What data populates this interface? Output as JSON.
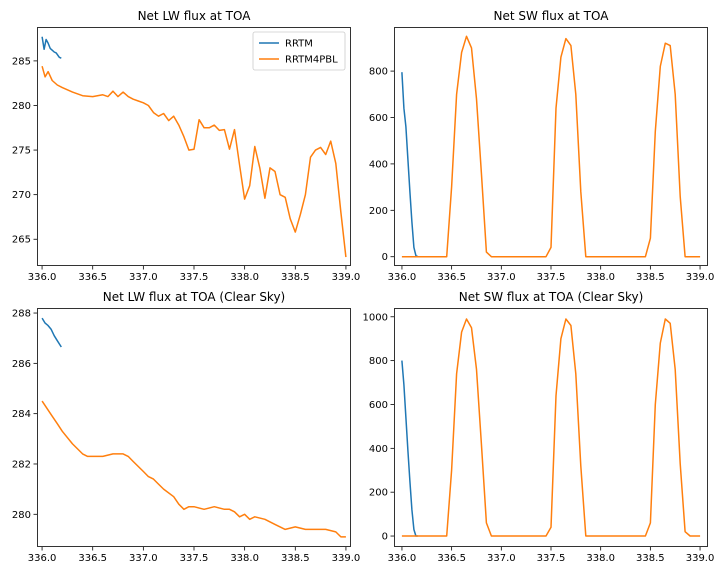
{
  "colors": {
    "rrtm": "#1f77b4",
    "rrtm4pbl": "#ff7f0e",
    "axis": "#000000",
    "background": "#ffffff"
  },
  "chart_data": [
    {
      "type": "line",
      "title": "Net LW flux at TOA",
      "xlabel": "",
      "ylabel": "",
      "xlim": [
        335.95,
        339.05
      ],
      "ylim": [
        262.0,
        288.8
      ],
      "xticks": [
        336.0,
        336.5,
        337.0,
        337.5,
        338.0,
        338.5,
        339.0
      ],
      "xtick_labels": [
        "336.0",
        "336.5",
        "337.0",
        "337.5",
        "338.0",
        "338.5",
        "339.0"
      ],
      "yticks": [
        265,
        270,
        275,
        280,
        285
      ],
      "ytick_labels": [
        "265",
        "270",
        "275",
        "280",
        "285"
      ],
      "legend": {
        "placement": "top-right",
        "entries": [
          "RRTM",
          "RRTM4PBL"
        ]
      },
      "grid": false,
      "series": [
        {
          "name": "RRTM",
          "color": "#1f77b4",
          "x": [
            336.0,
            336.02,
            336.04,
            336.06,
            336.08,
            336.1,
            336.12,
            336.14,
            336.17,
            336.19
          ],
          "y": [
            287.7,
            286.3,
            287.4,
            287.0,
            286.4,
            286.2,
            286.0,
            285.9,
            285.4,
            285.3
          ]
        },
        {
          "name": "RRTM4PBL",
          "color": "#ff7f0e",
          "x": [
            336.0,
            336.03,
            336.06,
            336.1,
            336.15,
            336.2,
            336.3,
            336.4,
            336.5,
            336.6,
            336.65,
            336.7,
            336.75,
            336.8,
            336.85,
            336.9,
            336.95,
            337.0,
            337.05,
            337.1,
            337.15,
            337.2,
            337.25,
            337.3,
            337.35,
            337.4,
            337.45,
            337.5,
            337.55,
            337.6,
            337.65,
            337.7,
            337.75,
            337.8,
            337.85,
            337.9,
            337.95,
            338.0,
            338.05,
            338.1,
            338.15,
            338.2,
            338.25,
            338.3,
            338.35,
            338.4,
            338.45,
            338.5,
            338.55,
            338.6,
            338.65,
            338.7,
            338.75,
            338.8,
            338.85,
            338.9,
            338.95,
            339.0
          ],
          "y": [
            284.4,
            283.2,
            283.8,
            282.8,
            282.3,
            282.0,
            281.5,
            281.1,
            281.0,
            281.2,
            281.0,
            281.6,
            281.0,
            281.5,
            281.0,
            280.7,
            280.5,
            280.3,
            280.0,
            279.2,
            278.8,
            279.1,
            278.3,
            278.8,
            277.8,
            276.5,
            275.0,
            275.1,
            278.4,
            277.5,
            277.5,
            277.8,
            277.2,
            277.3,
            275.1,
            277.3,
            273.3,
            269.5,
            271.0,
            275.4,
            273.0,
            269.6,
            273.0,
            272.6,
            270.0,
            269.7,
            267.3,
            265.8,
            267.8,
            270.0,
            274.2,
            275.0,
            275.3,
            274.5,
            276.0,
            273.5,
            268.0,
            263.0
          ]
        }
      ]
    },
    {
      "type": "line",
      "title": "Net SW flux at TOA",
      "xlabel": "",
      "ylabel": "",
      "xlim": [
        335.92,
        339.08
      ],
      "ylim": [
        -40,
        990
      ],
      "xticks": [
        336.0,
        336.5,
        337.0,
        337.5,
        338.0,
        338.5,
        339.0
      ],
      "xtick_labels": [
        "336.0",
        "336.5",
        "337.0",
        "337.5",
        "338.0",
        "338.5",
        "339.0"
      ],
      "yticks": [
        0,
        200,
        400,
        600,
        800
      ],
      "ytick_labels": [
        "0",
        "200",
        "400",
        "600",
        "800"
      ],
      "grid": false,
      "series": [
        {
          "name": "RRTM",
          "color": "#1f77b4",
          "x": [
            336.0,
            336.02,
            336.04,
            336.06,
            336.08,
            336.1,
            336.12,
            336.14,
            336.16
          ],
          "y": [
            795,
            640,
            560,
            420,
            280,
            150,
            40,
            5,
            0
          ]
        },
        {
          "name": "RRTM4PBL",
          "color": "#ff7f0e",
          "x": [
            336.0,
            336.45,
            336.5,
            336.55,
            336.6,
            336.65,
            336.7,
            336.75,
            336.8,
            336.85,
            336.9,
            336.95,
            337.45,
            337.5,
            337.55,
            337.6,
            337.65,
            337.7,
            337.75,
            337.8,
            337.85,
            337.9,
            337.95,
            338.45,
            338.5,
            338.55,
            338.6,
            338.65,
            338.7,
            338.75,
            338.8,
            338.85,
            338.9,
            338.95,
            339.0
          ],
          "y": [
            0,
            0,
            300,
            700,
            880,
            950,
            900,
            680,
            360,
            20,
            0,
            0,
            0,
            40,
            640,
            860,
            940,
            910,
            700,
            280,
            0,
            0,
            0,
            0,
            80,
            540,
            820,
            920,
            910,
            700,
            260,
            0,
            0,
            0,
            0
          ]
        }
      ]
    },
    {
      "type": "line",
      "title": "Net LW flux at TOA (Clear Sky)",
      "xlabel": "",
      "ylabel": "",
      "xlim": [
        335.95,
        339.05
      ],
      "ylim": [
        278.7,
        288.2
      ],
      "xticks": [
        336.0,
        336.5,
        337.0,
        337.5,
        338.0,
        338.5,
        339.0
      ],
      "xtick_labels": [
        "336.0",
        "336.5",
        "337.0",
        "337.5",
        "338.0",
        "338.5",
        "339.0"
      ],
      "yticks": [
        280,
        282,
        284,
        286,
        288
      ],
      "ytick_labels": [
        "280",
        "282",
        "284",
        "286",
        "288"
      ],
      "grid": false,
      "series": [
        {
          "name": "RRTM",
          "color": "#1f77b4",
          "x": [
            336.0,
            336.03,
            336.06,
            336.09,
            336.12,
            336.15,
            336.19
          ],
          "y": [
            287.8,
            287.6,
            287.5,
            287.35,
            287.1,
            286.9,
            286.65
          ]
        },
        {
          "name": "RRTM4PBL",
          "color": "#ff7f0e",
          "x": [
            336.0,
            336.05,
            336.1,
            336.15,
            336.2,
            336.3,
            336.4,
            336.45,
            336.5,
            336.6,
            336.7,
            336.8,
            336.85,
            336.9,
            337.0,
            337.05,
            337.1,
            337.15,
            337.2,
            337.3,
            337.35,
            337.4,
            337.45,
            337.5,
            337.6,
            337.7,
            337.8,
            337.85,
            337.9,
            337.95,
            338.0,
            338.05,
            338.1,
            338.2,
            338.3,
            338.4,
            338.5,
            338.6,
            338.7,
            338.8,
            338.9,
            338.95,
            339.0
          ],
          "y": [
            284.5,
            284.2,
            283.9,
            283.6,
            283.3,
            282.8,
            282.4,
            282.3,
            282.3,
            282.3,
            282.4,
            282.4,
            282.3,
            282.1,
            281.7,
            281.5,
            281.4,
            281.2,
            281.0,
            280.7,
            280.4,
            280.2,
            280.3,
            280.3,
            280.2,
            280.3,
            280.2,
            280.2,
            280.1,
            279.9,
            280.0,
            279.8,
            279.9,
            279.8,
            279.6,
            279.4,
            279.5,
            279.4,
            279.4,
            279.4,
            279.3,
            279.1,
            279.1
          ]
        }
      ]
    },
    {
      "type": "line",
      "title": "Net SW flux at TOA (Clear Sky)",
      "xlabel": "",
      "ylabel": "",
      "xlim": [
        335.92,
        339.08
      ],
      "ylim": [
        -50,
        1040
      ],
      "xticks": [
        336.0,
        336.5,
        337.0,
        337.5,
        338.0,
        338.5,
        339.0
      ],
      "xtick_labels": [
        "336.0",
        "336.5",
        "337.0",
        "337.5",
        "338.0",
        "338.5",
        "339.0"
      ],
      "yticks": [
        0,
        200,
        400,
        600,
        800,
        1000
      ],
      "ytick_labels": [
        "0",
        "200",
        "400",
        "600",
        "800",
        "1000"
      ],
      "grid": false,
      "series": [
        {
          "name": "RRTM",
          "color": "#1f77b4",
          "x": [
            336.0,
            336.02,
            336.04,
            336.06,
            336.08,
            336.1,
            336.12,
            336.14,
            336.16
          ],
          "y": [
            800,
            690,
            540,
            390,
            250,
            120,
            30,
            0,
            0
          ]
        },
        {
          "name": "RRTM4PBL",
          "color": "#ff7f0e",
          "x": [
            336.0,
            336.45,
            336.5,
            336.55,
            336.6,
            336.65,
            336.7,
            336.75,
            336.8,
            336.85,
            336.9,
            336.95,
            337.45,
            337.5,
            337.55,
            337.6,
            337.65,
            337.7,
            337.75,
            337.8,
            337.85,
            337.9,
            337.95,
            338.45,
            338.5,
            338.55,
            338.6,
            338.65,
            338.7,
            338.75,
            338.8,
            338.85,
            338.9,
            338.95,
            339.0
          ],
          "y": [
            0,
            0,
            300,
            740,
            930,
            990,
            950,
            760,
            420,
            60,
            0,
            0,
            0,
            40,
            640,
            900,
            990,
            960,
            740,
            320,
            0,
            0,
            0,
            0,
            60,
            600,
            880,
            990,
            970,
            760,
            330,
            20,
            0,
            0,
            0
          ]
        }
      ]
    }
  ]
}
